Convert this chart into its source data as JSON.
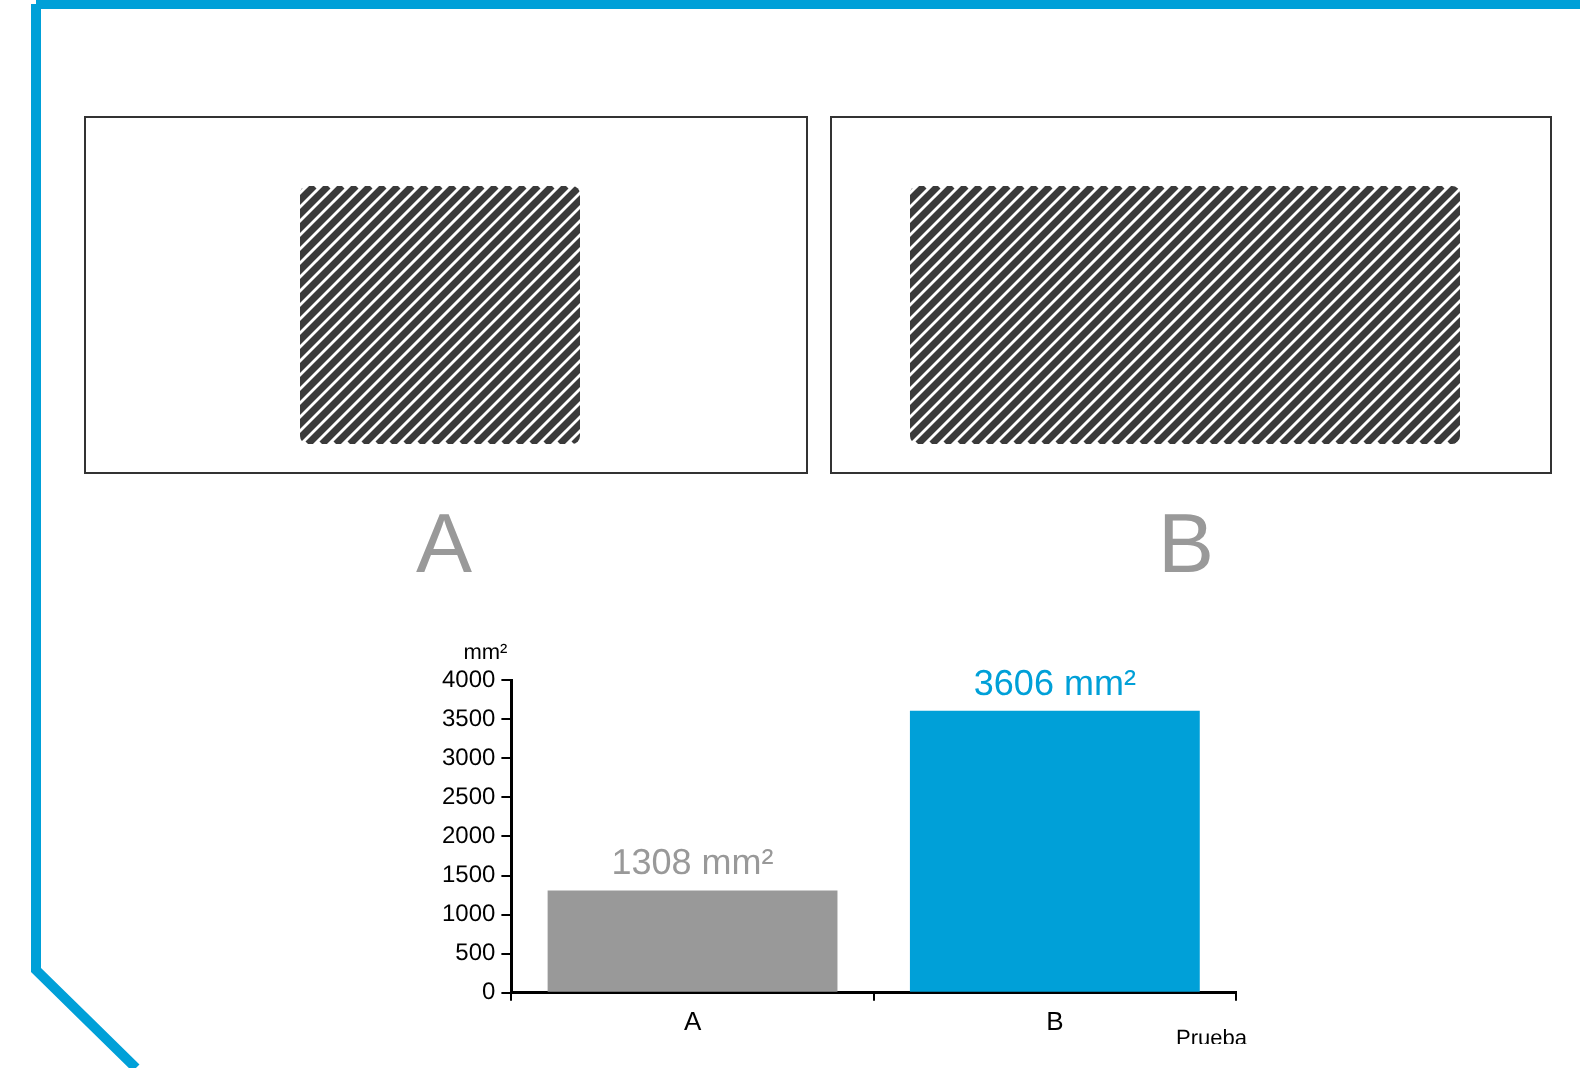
{
  "chart_data": {
    "type": "bar",
    "categories": [
      "A",
      "B"
    ],
    "values": [
      1308,
      3606
    ],
    "colors": [
      "#999999",
      "#00a0d8"
    ],
    "value_labels": [
      "1308 mm²",
      "3606 mm²"
    ],
    "ylabel": "mm²",
    "xlabel": "Prueba",
    "ylim": [
      0,
      4000
    ],
    "yticks": [
      0,
      500,
      1000,
      1500,
      2000,
      2500,
      3000,
      3500,
      4000
    ],
    "grid": false,
    "legend": false,
    "annotations": [
      "A",
      "B"
    ]
  }
}
